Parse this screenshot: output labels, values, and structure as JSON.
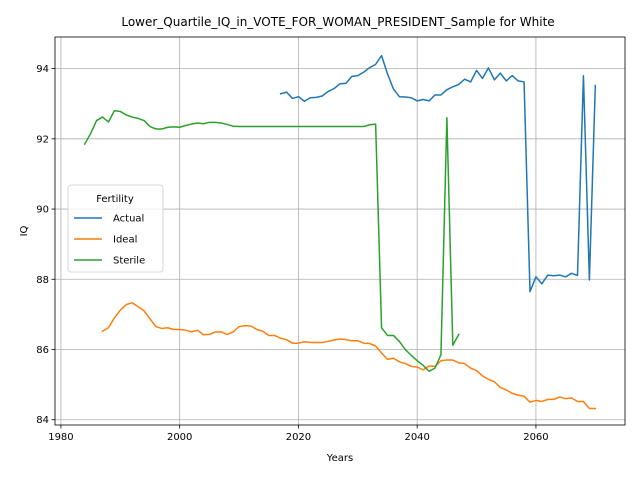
{
  "chart_data": {
    "type": "line",
    "title": "Lower_Quartile_IQ_in_VOTE_FOR_WOMAN_PRESIDENT_Sample for White",
    "xlabel": "Years",
    "ylabel": "IQ",
    "xlim": [
      1979,
      2075
    ],
    "ylim": [
      83.85,
      94.9
    ],
    "xticks": [
      1980,
      2000,
      2020,
      2040,
      2060
    ],
    "xtick_labels": [
      "1980",
      "2000",
      "2020",
      "2040",
      "2060"
    ],
    "yticks": [
      84,
      86,
      88,
      90,
      92,
      94
    ],
    "ytick_labels": [
      "84",
      "86",
      "88",
      "90",
      "92",
      "94"
    ],
    "grid": true,
    "legend": {
      "title": "Fertility",
      "placement": "center-left"
    },
    "series": [
      {
        "name": "Actual",
        "color": "#1f77b4",
        "x": [
          2017,
          2018,
          2019,
          2020,
          2021,
          2022,
          2023,
          2024,
          2025,
          2026,
          2027,
          2028,
          2029,
          2030,
          2031,
          2032,
          2033,
          2034,
          2035,
          2036,
          2037,
          2038,
          2039,
          2040,
          2041,
          2042,
          2043,
          2044,
          2045,
          2046,
          2047,
          2048,
          2049,
          2050,
          2051,
          2052,
          2053,
          2054,
          2055,
          2056,
          2057,
          2058,
          2059,
          2060,
          2061,
          2062,
          2063,
          2064,
          2065,
          2066,
          2067,
          2068,
          2069,
          2070
        ],
        "y": [
          93.28,
          93.33,
          93.15,
          93.2,
          93.07,
          93.17,
          93.18,
          93.22,
          93.35,
          93.43,
          93.57,
          93.58,
          93.78,
          93.8,
          93.9,
          94.03,
          94.12,
          94.37,
          93.85,
          93.42,
          93.2,
          93.19,
          93.17,
          93.08,
          93.12,
          93.08,
          93.25,
          93.25,
          93.4,
          93.48,
          93.55,
          93.7,
          93.62,
          93.95,
          93.72,
          94.02,
          93.68,
          93.87,
          93.65,
          93.8,
          93.65,
          93.62,
          87.65,
          88.07,
          87.87,
          88.12,
          88.1,
          88.12,
          88.07,
          88.17,
          88.11,
          93.8,
          87.98,
          93.52
        ]
      },
      {
        "name": "Ideal",
        "color": "#ff7f0e",
        "x": [
          1987,
          1988,
          1989,
          1990,
          1991,
          1992,
          1993,
          1994,
          1995,
          1996,
          1997,
          1998,
          1999,
          2000,
          2001,
          2002,
          2003,
          2004,
          2005,
          2006,
          2007,
          2008,
          2009,
          2010,
          2011,
          2012,
          2013,
          2014,
          2015,
          2016,
          2017,
          2018,
          2019,
          2020,
          2021,
          2022,
          2023,
          2024,
          2025,
          2026,
          2027,
          2028,
          2029,
          2030,
          2031,
          2032,
          2033,
          2034,
          2035,
          2036,
          2037,
          2038,
          2039,
          2040,
          2041,
          2042,
          2043,
          2044,
          2045,
          2046,
          2047,
          2048,
          2049,
          2050,
          2051,
          2052,
          2053,
          2054,
          2055,
          2056,
          2057,
          2058,
          2059,
          2060,
          2061,
          2062,
          2063,
          2064,
          2065,
          2066,
          2067,
          2068,
          2069,
          2070
        ],
        "y": [
          86.52,
          86.62,
          86.9,
          87.12,
          87.28,
          87.33,
          87.22,
          87.1,
          86.87,
          86.65,
          86.6,
          86.62,
          86.57,
          86.57,
          86.55,
          86.5,
          86.55,
          86.42,
          86.43,
          86.5,
          86.5,
          86.43,
          86.5,
          86.65,
          86.68,
          86.67,
          86.57,
          86.52,
          86.4,
          86.4,
          86.32,
          86.28,
          86.18,
          86.18,
          86.22,
          86.2,
          86.2,
          86.2,
          86.23,
          86.27,
          86.3,
          86.28,
          86.25,
          86.25,
          86.18,
          86.17,
          86.1,
          85.9,
          85.72,
          85.75,
          85.65,
          85.6,
          85.52,
          85.5,
          85.42,
          85.53,
          85.52,
          85.68,
          85.7,
          85.7,
          85.62,
          85.6,
          85.47,
          85.4,
          85.25,
          85.15,
          85.08,
          84.92,
          84.85,
          84.75,
          84.7,
          84.67,
          84.5,
          84.55,
          84.52,
          84.58,
          84.58,
          84.65,
          84.6,
          84.62,
          84.52,
          84.52,
          84.32,
          84.32
        ]
      },
      {
        "name": "Sterile",
        "color": "#2ca02c",
        "x": [
          1984,
          1985,
          1986,
          1987,
          1988,
          1989,
          1990,
          1991,
          1992,
          1993,
          1994,
          1995,
          1996,
          1997,
          1998,
          1999,
          2000,
          2001,
          2002,
          2003,
          2004,
          2005,
          2006,
          2007,
          2008,
          2009,
          2010,
          2011,
          2012,
          2013,
          2014,
          2015,
          2016,
          2017,
          2018,
          2019,
          2020,
          2021,
          2022,
          2023,
          2024,
          2025,
          2026,
          2027,
          2028,
          2029,
          2030,
          2031,
          2032,
          2033,
          2034,
          2035,
          2036,
          2037,
          2038,
          2039,
          2040,
          2041,
          2042,
          2043,
          2044,
          2045,
          2046,
          2047
        ],
        "y": [
          91.85,
          92.15,
          92.52,
          92.62,
          92.48,
          92.8,
          92.78,
          92.68,
          92.62,
          92.58,
          92.52,
          92.35,
          92.28,
          92.28,
          92.33,
          92.34,
          92.33,
          92.38,
          92.42,
          92.45,
          92.43,
          92.47,
          92.47,
          92.45,
          92.41,
          92.36,
          92.35,
          92.35,
          92.35,
          92.35,
          92.35,
          92.35,
          92.35,
          92.35,
          92.35,
          92.35,
          92.35,
          92.35,
          92.35,
          92.35,
          92.35,
          92.35,
          92.35,
          92.35,
          92.35,
          92.35,
          92.35,
          92.35,
          92.4,
          92.42,
          86.62,
          86.4,
          86.4,
          86.23,
          86.0,
          85.83,
          85.68,
          85.55,
          85.38,
          85.47,
          85.85,
          92.6,
          86.12,
          86.43
        ]
      }
    ]
  }
}
